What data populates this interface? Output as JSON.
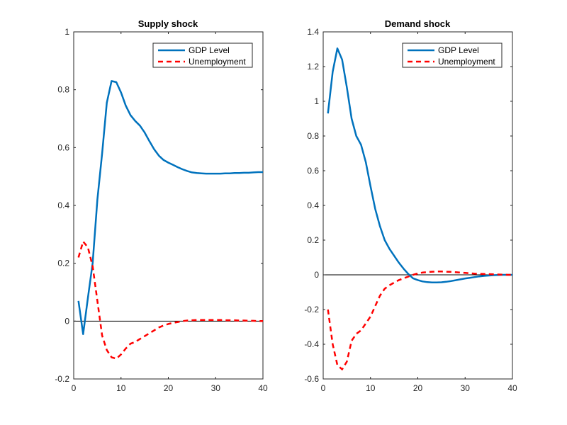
{
  "chart_data": [
    {
      "type": "line",
      "title": "Supply shock",
      "xlabel": "",
      "ylabel": "",
      "xlim": [
        0,
        40
      ],
      "ylim": [
        -0.2,
        1
      ],
      "xticks": [
        0,
        10,
        20,
        30,
        40
      ],
      "yticks": [
        -0.2,
        0,
        0.2,
        0.4,
        0.6,
        0.8,
        1
      ],
      "ytick_labels": [
        "-0.2",
        "0",
        "0.2",
        "0.4",
        "0.6",
        "0.8",
        "1"
      ],
      "zero_line": true,
      "grid": false,
      "legend_position": "top-right",
      "series": [
        {
          "name": "GDP Level",
          "color": "#0072BD",
          "style": "solid",
          "x": [
            1,
            2,
            3,
            4,
            5,
            6,
            7,
            8,
            9,
            10,
            11,
            12,
            13,
            14,
            15,
            16,
            17,
            18,
            19,
            20,
            21,
            22,
            23,
            24,
            25,
            26,
            27,
            28,
            29,
            30,
            31,
            32,
            33,
            34,
            35,
            36,
            37,
            38,
            39,
            40
          ],
          "values": [
            0.07,
            -0.045,
            0.08,
            0.2,
            0.42,
            0.58,
            0.755,
            0.83,
            0.826,
            0.79,
            0.745,
            0.712,
            0.692,
            0.676,
            0.652,
            0.622,
            0.594,
            0.572,
            0.557,
            0.548,
            0.54,
            0.532,
            0.525,
            0.519,
            0.514,
            0.512,
            0.511,
            0.51,
            0.51,
            0.51,
            0.51,
            0.511,
            0.511,
            0.512,
            0.512,
            0.513,
            0.513,
            0.514,
            0.515,
            0.515
          ]
        },
        {
          "name": "Unemployment",
          "color": "#FF0000",
          "style": "dashed",
          "x": [
            1,
            2,
            3,
            4,
            5,
            6,
            7,
            8,
            9,
            10,
            11,
            12,
            13,
            14,
            15,
            16,
            17,
            18,
            19,
            20,
            21,
            22,
            23,
            24,
            25,
            26,
            27,
            28,
            29,
            30,
            31,
            32,
            33,
            34,
            35,
            36,
            37,
            38,
            39,
            40
          ],
          "values": [
            0.22,
            0.275,
            0.255,
            0.19,
            0.07,
            -0.05,
            -0.1,
            -0.125,
            -0.13,
            -0.115,
            -0.095,
            -0.078,
            -0.072,
            -0.062,
            -0.052,
            -0.042,
            -0.032,
            -0.022,
            -0.015,
            -0.01,
            -0.006,
            -0.003,
            0.0,
            0.002,
            0.003,
            0.004,
            0.004,
            0.004,
            0.004,
            0.004,
            0.004,
            0.003,
            0.003,
            0.003,
            0.002,
            0.002,
            0.001,
            0.001,
            0.0,
            0.0
          ]
        }
      ]
    },
    {
      "type": "line",
      "title": "Demand shock",
      "xlabel": "",
      "ylabel": "",
      "xlim": [
        0,
        40
      ],
      "ylim": [
        -0.6,
        1.4
      ],
      "xticks": [
        0,
        10,
        20,
        30,
        40
      ],
      "yticks": [
        -0.6,
        -0.4,
        -0.2,
        0,
        0.2,
        0.4,
        0.6,
        0.8,
        1,
        1.2,
        1.4
      ],
      "ytick_labels": [
        "-0.6",
        "-0.4",
        "-0.2",
        "0",
        "0.2",
        "0.4",
        "0.6",
        "0.8",
        "1",
        "1.2",
        "1.4"
      ],
      "zero_line": true,
      "grid": false,
      "legend_position": "top-right",
      "series": [
        {
          "name": "GDP Level",
          "color": "#0072BD",
          "style": "solid",
          "x": [
            1,
            2,
            3,
            4,
            5,
            6,
            7,
            8,
            9,
            10,
            11,
            12,
            13,
            14,
            15,
            16,
            17,
            18,
            19,
            20,
            21,
            22,
            23,
            24,
            25,
            26,
            27,
            28,
            29,
            30,
            31,
            32,
            33,
            34,
            35,
            36,
            37,
            38,
            39,
            40
          ],
          "values": [
            0.93,
            1.17,
            1.305,
            1.24,
            1.08,
            0.9,
            0.8,
            0.75,
            0.65,
            0.51,
            0.38,
            0.28,
            0.2,
            0.15,
            0.11,
            0.07,
            0.035,
            0.005,
            -0.02,
            -0.03,
            -0.038,
            -0.042,
            -0.044,
            -0.044,
            -0.043,
            -0.04,
            -0.036,
            -0.031,
            -0.026,
            -0.021,
            -0.017,
            -0.013,
            -0.009,
            -0.006,
            -0.004,
            -0.002,
            -0.001,
            0.0,
            0.0,
            0.0
          ]
        },
        {
          "name": "Unemployment",
          "color": "#FF0000",
          "style": "dashed",
          "x": [
            1,
            2,
            3,
            4,
            5,
            6,
            7,
            8,
            9,
            10,
            11,
            12,
            13,
            14,
            15,
            16,
            17,
            18,
            19,
            20,
            21,
            22,
            23,
            24,
            25,
            26,
            27,
            28,
            29,
            30,
            31,
            32,
            33,
            34,
            35,
            36,
            37,
            38,
            39,
            40
          ],
          "values": [
            -0.2,
            -0.4,
            -0.52,
            -0.545,
            -0.5,
            -0.38,
            -0.34,
            -0.32,
            -0.28,
            -0.24,
            -0.18,
            -0.12,
            -0.08,
            -0.06,
            -0.045,
            -0.03,
            -0.02,
            -0.01,
            0.0,
            0.008,
            0.013,
            0.016,
            0.018,
            0.019,
            0.019,
            0.018,
            0.017,
            0.015,
            0.013,
            0.011,
            0.009,
            0.007,
            0.006,
            0.005,
            0.004,
            0.003,
            0.002,
            0.001,
            0.0,
            0.0
          ]
        }
      ]
    }
  ],
  "xtick_labels": [
    "0",
    "10",
    "20",
    "30",
    "40"
  ]
}
